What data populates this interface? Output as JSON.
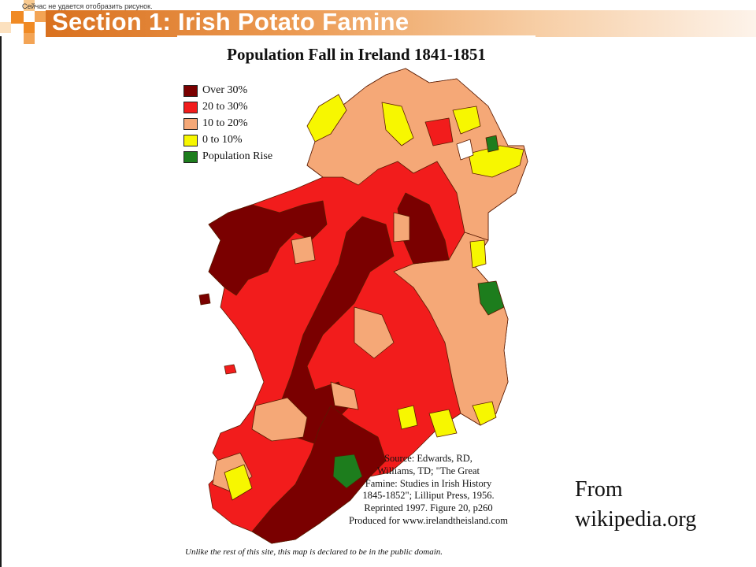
{
  "slide": {
    "title": "Section 1: Irish Potato Famine",
    "placeholder_note": "Сейчас не удается отобразить рисунок.",
    "credit_line1": "From",
    "credit_line2": "wikipedia.org"
  },
  "map": {
    "title": "Population Fall in Ireland 1841-1851",
    "legend": [
      {
        "label": "Over 30%",
        "color": "#7a0000"
      },
      {
        "label": "20 to 30%",
        "color": "#f21c1c"
      },
      {
        "label": "10 to 20%",
        "color": "#f5a877"
      },
      {
        "label": "0 to 10%",
        "color": "#f7f700"
      },
      {
        "label": "Population Rise",
        "color": "#1d7d1d"
      }
    ],
    "source_lines": [
      "Source: Edwards, RD,",
      "Williams, TD; \"The Great",
      "Famine: Studies in Irish History",
      "1845-1852\"; Lilliput Press, 1956.",
      "Reprinted 1997. Figure 20, p260",
      "Produced for www.irelandtheisland.com"
    ],
    "footnote": "Unlike the rest of this site, this map is declared to be in the public domain."
  }
}
